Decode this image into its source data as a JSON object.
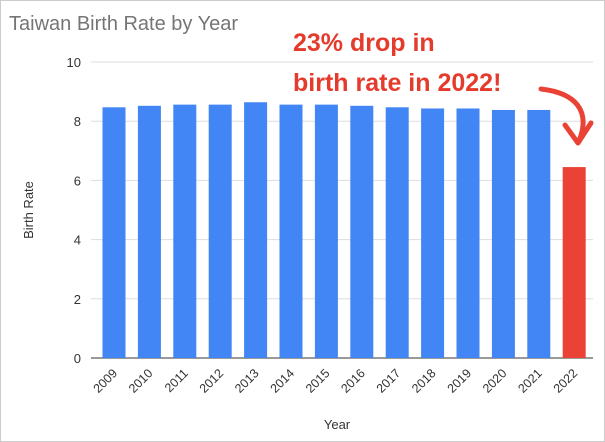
{
  "chart_data": {
    "type": "bar",
    "title": "Taiwan Birth Rate by Year",
    "xlabel": "Year",
    "ylabel": "Birth Rate",
    "ylim": [
      0,
      10
    ],
    "yticks": [
      0,
      2,
      4,
      6,
      8,
      10
    ],
    "grid": true,
    "categories": [
      "2009",
      "2010",
      "2011",
      "2012",
      "2013",
      "2014",
      "2015",
      "2016",
      "2017",
      "2018",
      "2019",
      "2020",
      "2021",
      "2022"
    ],
    "values": [
      8.47,
      8.52,
      8.56,
      8.56,
      8.64,
      8.56,
      8.56,
      8.52,
      8.47,
      8.43,
      8.43,
      8.38,
      8.38,
      6.45
    ],
    "colors": {
      "default": "#4285f4",
      "highlight": "#ea4335"
    },
    "highlight_index": 13,
    "annotation": [
      "23% drop in",
      "birth rate in 2022!"
    ]
  }
}
